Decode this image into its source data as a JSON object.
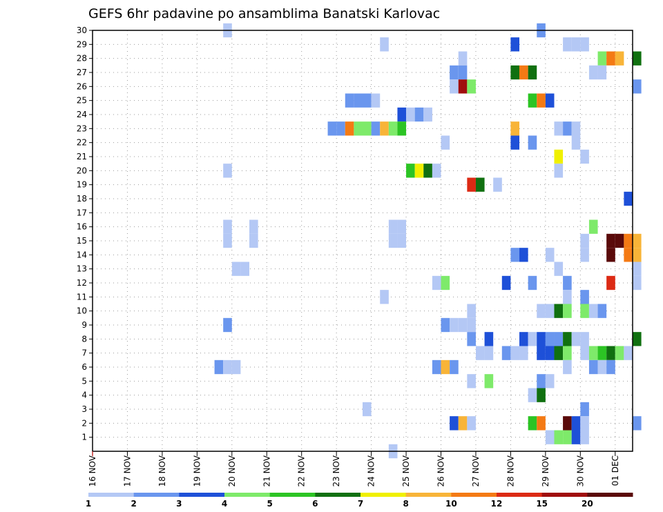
{
  "chart_data": {
    "type": "heatmap",
    "title": "GEFS 6hr padavine po ansamblima Banatski Karlovac",
    "xlabel": "",
    "ylabel": "",
    "x_ticks": [
      "16 NOV",
      "17 NOV",
      "18 NOV",
      "19 NOV",
      "20 NOV",
      "21 NOV",
      "22 NOV",
      "23 NOV",
      "24 NOV",
      "25 NOV",
      "26 NOV",
      "27 NOV",
      "28 NOV",
      "29 NOV",
      "30 NOV",
      "01 DEC"
    ],
    "y_ticks": [
      "1",
      "2",
      "3",
      "4",
      "5",
      "6",
      "7",
      "8",
      "9",
      "10",
      "11",
      "12",
      "13",
      "14",
      "15",
      "16",
      "17",
      "18",
      "19",
      "20",
      "21",
      "22",
      "23",
      "24",
      "25",
      "26",
      "27",
      "28",
      "29",
      "30"
    ],
    "x_unit": "days from 16 NOV 00z",
    "xlim": [
      0,
      15.5
    ],
    "ylim": [
      0,
      30
    ],
    "grid": true,
    "colorbar": {
      "labels": [
        "1",
        "2",
        "3",
        "4",
        "5",
        "6",
        "7",
        "8",
        "10",
        "12",
        "15",
        "20"
      ],
      "colors": [
        "#b4c8f5",
        "#6a96ee",
        "#1e50d8",
        "#7eea6a",
        "#2cc424",
        "#107010",
        "#f0f000",
        "#f8b438",
        "#f47a14",
        "#dc2a14",
        "#a00e0e",
        "#5a0a0a"
      ]
    },
    "series": [
      {
        "member": 30,
        "cells": [
          [
            3.75,
            0
          ],
          [
            12.75,
            1
          ]
        ]
      },
      {
        "member": 29,
        "cells": [
          [
            8.25,
            0
          ],
          [
            12.0,
            2
          ],
          [
            13.5,
            0
          ],
          [
            13.75,
            0
          ],
          [
            14.0,
            0
          ]
        ]
      },
      {
        "member": 28,
        "cells": [
          [
            10.5,
            0
          ],
          [
            14.5,
            3
          ],
          [
            14.75,
            8
          ],
          [
            15.0,
            7
          ],
          [
            15.5,
            5
          ]
        ]
      },
      {
        "member": 27,
        "cells": [
          [
            10.25,
            1
          ],
          [
            10.5,
            1
          ],
          [
            12.0,
            5
          ],
          [
            12.25,
            8
          ],
          [
            12.5,
            5
          ],
          [
            14.25,
            0
          ],
          [
            14.5,
            0
          ]
        ]
      },
      {
        "member": 26,
        "cells": [
          [
            10.25,
            0
          ],
          [
            10.5,
            10
          ],
          [
            10.75,
            3
          ],
          [
            15.5,
            1
          ]
        ]
      },
      {
        "member": 25,
        "cells": [
          [
            7.25,
            1
          ],
          [
            7.5,
            1
          ],
          [
            7.75,
            1
          ],
          [
            8.0,
            0
          ],
          [
            12.5,
            4
          ],
          [
            12.75,
            8
          ],
          [
            13.0,
            2
          ]
        ]
      },
      {
        "member": 24,
        "cells": [
          [
            8.75,
            2
          ],
          [
            9.0,
            0
          ],
          [
            9.25,
            1
          ],
          [
            9.5,
            0
          ]
        ]
      },
      {
        "member": 23,
        "cells": [
          [
            6.75,
            1
          ],
          [
            7.0,
            1
          ],
          [
            7.25,
            8
          ],
          [
            7.5,
            3
          ],
          [
            7.75,
            3
          ],
          [
            8.0,
            1
          ],
          [
            8.25,
            7
          ],
          [
            8.5,
            3
          ],
          [
            8.75,
            4
          ],
          [
            12.0,
            7
          ],
          [
            13.25,
            0
          ],
          [
            13.5,
            1
          ],
          [
            13.75,
            0
          ]
        ]
      },
      {
        "member": 22,
        "cells": [
          [
            10.0,
            0
          ],
          [
            12.0,
            2
          ],
          [
            12.5,
            1
          ],
          [
            13.75,
            0
          ]
        ]
      },
      {
        "member": 21,
        "cells": [
          [
            13.25,
            6
          ],
          [
            14.0,
            0
          ]
        ]
      },
      {
        "member": 20,
        "cells": [
          [
            3.75,
            0
          ],
          [
            9.0,
            4
          ],
          [
            9.25,
            6
          ],
          [
            9.5,
            5
          ],
          [
            9.75,
            0
          ],
          [
            13.25,
            0
          ]
        ]
      },
      {
        "member": 19,
        "cells": [
          [
            10.75,
            9
          ],
          [
            11.0,
            5
          ],
          [
            11.5,
            0
          ]
        ]
      },
      {
        "member": 18,
        "cells": [
          [
            15.25,
            2
          ]
        ]
      },
      {
        "member": 16,
        "cells": [
          [
            3.75,
            0
          ],
          [
            4.5,
            0
          ],
          [
            8.5,
            0
          ],
          [
            8.75,
            0
          ],
          [
            14.25,
            3
          ]
        ]
      },
      {
        "member": 15,
        "cells": [
          [
            3.75,
            0
          ],
          [
            4.5,
            0
          ],
          [
            8.5,
            0
          ],
          [
            8.75,
            0
          ],
          [
            14.0,
            0
          ],
          [
            14.75,
            11
          ],
          [
            15.0,
            11
          ],
          [
            15.25,
            8
          ],
          [
            15.5,
            7
          ]
        ]
      },
      {
        "member": 14,
        "cells": [
          [
            12.0,
            1
          ],
          [
            12.25,
            2
          ],
          [
            13.0,
            0
          ],
          [
            14.0,
            0
          ],
          [
            14.75,
            11
          ],
          [
            15.25,
            8
          ],
          [
            15.5,
            7
          ]
        ]
      },
      {
        "member": 13,
        "cells": [
          [
            4.0,
            0
          ],
          [
            4.25,
            0
          ],
          [
            13.25,
            0
          ],
          [
            15.5,
            0
          ]
        ]
      },
      {
        "member": 12,
        "cells": [
          [
            9.75,
            0
          ],
          [
            10.0,
            3
          ],
          [
            11.75,
            2
          ],
          [
            12.5,
            1
          ],
          [
            13.5,
            1
          ],
          [
            14.75,
            9
          ],
          [
            15.5,
            0
          ]
        ]
      },
      {
        "member": 11,
        "cells": [
          [
            8.25,
            0
          ],
          [
            13.5,
            0
          ],
          [
            14.0,
            1
          ]
        ]
      },
      {
        "member": 10,
        "cells": [
          [
            10.75,
            0
          ],
          [
            12.75,
            0
          ],
          [
            13.0,
            0
          ],
          [
            13.25,
            5
          ],
          [
            13.5,
            3
          ],
          [
            14.0,
            3
          ],
          [
            14.25,
            0
          ],
          [
            14.5,
            1
          ]
        ]
      },
      {
        "member": 9,
        "cells": [
          [
            3.75,
            1
          ],
          [
            10.0,
            1
          ],
          [
            10.25,
            0
          ],
          [
            10.5,
            0
          ],
          [
            10.75,
            0
          ]
        ]
      },
      {
        "member": 8,
        "cells": [
          [
            10.75,
            1
          ],
          [
            11.25,
            2
          ],
          [
            12.25,
            2
          ],
          [
            12.5,
            0
          ],
          [
            12.75,
            2
          ],
          [
            13.0,
            1
          ],
          [
            13.25,
            1
          ],
          [
            13.5,
            5
          ],
          [
            13.75,
            0
          ],
          [
            14.0,
            0
          ],
          [
            15.5,
            5
          ]
        ]
      },
      {
        "member": 7,
        "cells": [
          [
            11.0,
            0
          ],
          [
            11.25,
            0
          ],
          [
            11.75,
            1
          ],
          [
            12.0,
            0
          ],
          [
            12.25,
            0
          ],
          [
            12.75,
            2
          ],
          [
            13.0,
            2
          ],
          [
            13.25,
            5
          ],
          [
            13.5,
            3
          ],
          [
            14.0,
            0
          ],
          [
            14.25,
            3
          ],
          [
            14.5,
            4
          ],
          [
            14.75,
            5
          ],
          [
            15.0,
            3
          ],
          [
            15.25,
            0
          ]
        ]
      },
      {
        "member": 6,
        "cells": [
          [
            3.5,
            1
          ],
          [
            3.75,
            0
          ],
          [
            4.0,
            0
          ],
          [
            9.75,
            1
          ],
          [
            10.0,
            7
          ],
          [
            10.25,
            1
          ],
          [
            13.5,
            0
          ],
          [
            14.25,
            1
          ],
          [
            14.5,
            0
          ],
          [
            14.75,
            1
          ]
        ]
      },
      {
        "member": 5,
        "cells": [
          [
            10.75,
            0
          ],
          [
            11.25,
            3
          ],
          [
            12.75,
            1
          ],
          [
            13.0,
            0
          ]
        ]
      },
      {
        "member": 4,
        "cells": [
          [
            12.5,
            0
          ],
          [
            12.75,
            5
          ]
        ]
      },
      {
        "member": 3,
        "cells": [
          [
            7.75,
            0
          ],
          [
            14.0,
            1
          ]
        ]
      },
      {
        "member": 2,
        "cells": [
          [
            10.25,
            2
          ],
          [
            10.5,
            7
          ],
          [
            10.75,
            0
          ],
          [
            12.5,
            4
          ],
          [
            12.75,
            8
          ],
          [
            13.5,
            11
          ],
          [
            13.75,
            2
          ],
          [
            14.0,
            0
          ],
          [
            15.5,
            1
          ]
        ]
      },
      {
        "member": 1,
        "cells": [
          [
            13.0,
            0
          ],
          [
            13.25,
            3
          ],
          [
            13.5,
            3
          ],
          [
            13.75,
            2
          ],
          [
            14.0,
            0
          ]
        ]
      },
      {
        "member": 0,
        "cells": [
          [
            8.5,
            0
          ]
        ]
      }
    ]
  }
}
